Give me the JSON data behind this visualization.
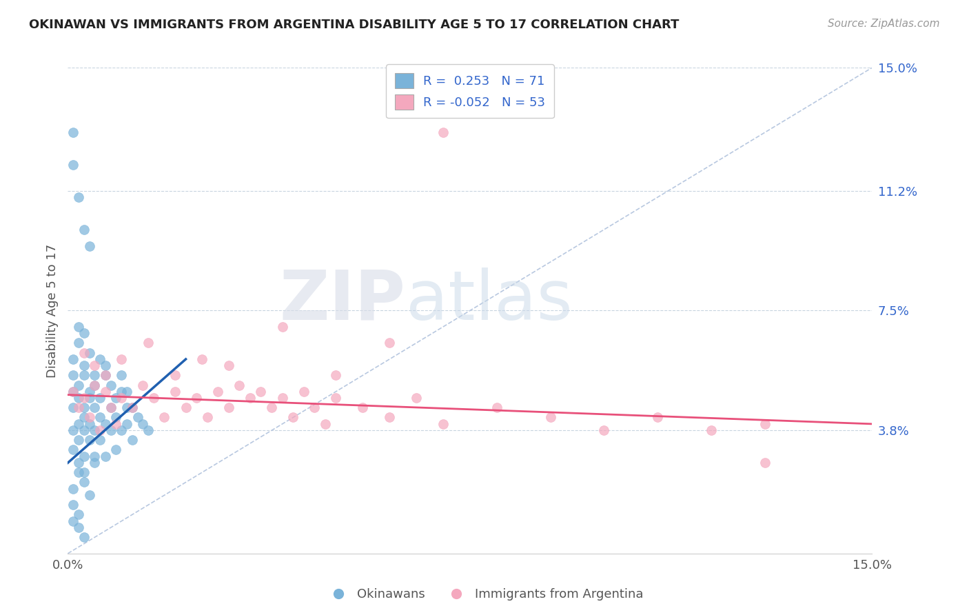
{
  "title": "OKINAWAN VS IMMIGRANTS FROM ARGENTINA DISABILITY AGE 5 TO 17 CORRELATION CHART",
  "source": "Source: ZipAtlas.com",
  "ylabel": "Disability Age 5 to 17",
  "xmin": 0.0,
  "xmax": 0.15,
  "ymin": 0.0,
  "ymax": 0.15,
  "yticks": [
    0.038,
    0.075,
    0.112,
    0.15
  ],
  "ytick_labels": [
    "3.8%",
    "7.5%",
    "11.2%",
    "15.0%"
  ],
  "xticks": [
    0.0,
    0.15
  ],
  "xtick_labels": [
    "0.0%",
    "15.0%"
  ],
  "color_blue": "#7ab3d9",
  "color_pink": "#f4a8be",
  "color_blue_line": "#2060b0",
  "color_pink_line": "#e8507a",
  "color_text_blue": "#3366cc",
  "color_diag": "#b8c8e0",
  "ok_x": [
    0.001,
    0.001,
    0.001,
    0.001,
    0.001,
    0.002,
    0.002,
    0.002,
    0.002,
    0.002,
    0.003,
    0.003,
    0.003,
    0.003,
    0.003,
    0.003,
    0.004,
    0.004,
    0.004,
    0.004,
    0.005,
    0.005,
    0.005,
    0.005,
    0.006,
    0.006,
    0.006,
    0.007,
    0.007,
    0.007,
    0.008,
    0.008,
    0.009,
    0.009,
    0.01,
    0.01,
    0.011,
    0.011,
    0.012,
    0.013,
    0.001,
    0.002,
    0.003,
    0.004,
    0.005,
    0.001,
    0.002,
    0.002,
    0.003,
    0.003,
    0.004,
    0.005,
    0.006,
    0.007,
    0.008,
    0.009,
    0.01,
    0.011,
    0.012,
    0.014,
    0.015,
    0.001,
    0.001,
    0.002,
    0.003,
    0.004,
    0.001,
    0.002,
    0.001,
    0.002,
    0.003
  ],
  "ok_y": [
    0.045,
    0.038,
    0.05,
    0.032,
    0.055,
    0.04,
    0.035,
    0.048,
    0.052,
    0.028,
    0.042,
    0.038,
    0.045,
    0.03,
    0.055,
    0.025,
    0.04,
    0.048,
    0.035,
    0.05,
    0.038,
    0.045,
    0.028,
    0.052,
    0.042,
    0.035,
    0.048,
    0.04,
    0.03,
    0.055,
    0.038,
    0.045,
    0.032,
    0.042,
    0.038,
    0.05,
    0.04,
    0.045,
    0.035,
    0.042,
    0.02,
    0.025,
    0.022,
    0.018,
    0.03,
    0.06,
    0.065,
    0.07,
    0.058,
    0.068,
    0.062,
    0.055,
    0.06,
    0.058,
    0.052,
    0.048,
    0.055,
    0.05,
    0.045,
    0.04,
    0.038,
    0.13,
    0.12,
    0.11,
    0.1,
    0.095,
    0.015,
    0.012,
    0.01,
    0.008,
    0.005
  ],
  "arg_x": [
    0.001,
    0.002,
    0.003,
    0.004,
    0.005,
    0.006,
    0.007,
    0.008,
    0.009,
    0.01,
    0.012,
    0.014,
    0.016,
    0.018,
    0.02,
    0.022,
    0.024,
    0.026,
    0.028,
    0.03,
    0.032,
    0.034,
    0.036,
    0.038,
    0.04,
    0.042,
    0.044,
    0.046,
    0.048,
    0.05,
    0.055,
    0.06,
    0.065,
    0.07,
    0.08,
    0.09,
    0.1,
    0.11,
    0.12,
    0.13,
    0.003,
    0.005,
    0.007,
    0.01,
    0.015,
    0.02,
    0.025,
    0.03,
    0.04,
    0.05,
    0.06,
    0.13,
    0.07
  ],
  "arg_y": [
    0.05,
    0.045,
    0.048,
    0.042,
    0.052,
    0.038,
    0.05,
    0.045,
    0.04,
    0.048,
    0.045,
    0.052,
    0.048,
    0.042,
    0.05,
    0.045,
    0.048,
    0.042,
    0.05,
    0.045,
    0.052,
    0.048,
    0.05,
    0.045,
    0.048,
    0.042,
    0.05,
    0.045,
    0.04,
    0.048,
    0.045,
    0.042,
    0.048,
    0.04,
    0.045,
    0.042,
    0.038,
    0.042,
    0.038,
    0.04,
    0.062,
    0.058,
    0.055,
    0.06,
    0.065,
    0.055,
    0.06,
    0.058,
    0.07,
    0.055,
    0.065,
    0.028,
    0.13
  ],
  "blue_line_x": [
    0.0,
    0.022
  ],
  "blue_line_y": [
    0.028,
    0.06
  ],
  "pink_line_x": [
    0.0,
    0.15
  ],
  "pink_line_y": [
    0.049,
    0.04
  ]
}
